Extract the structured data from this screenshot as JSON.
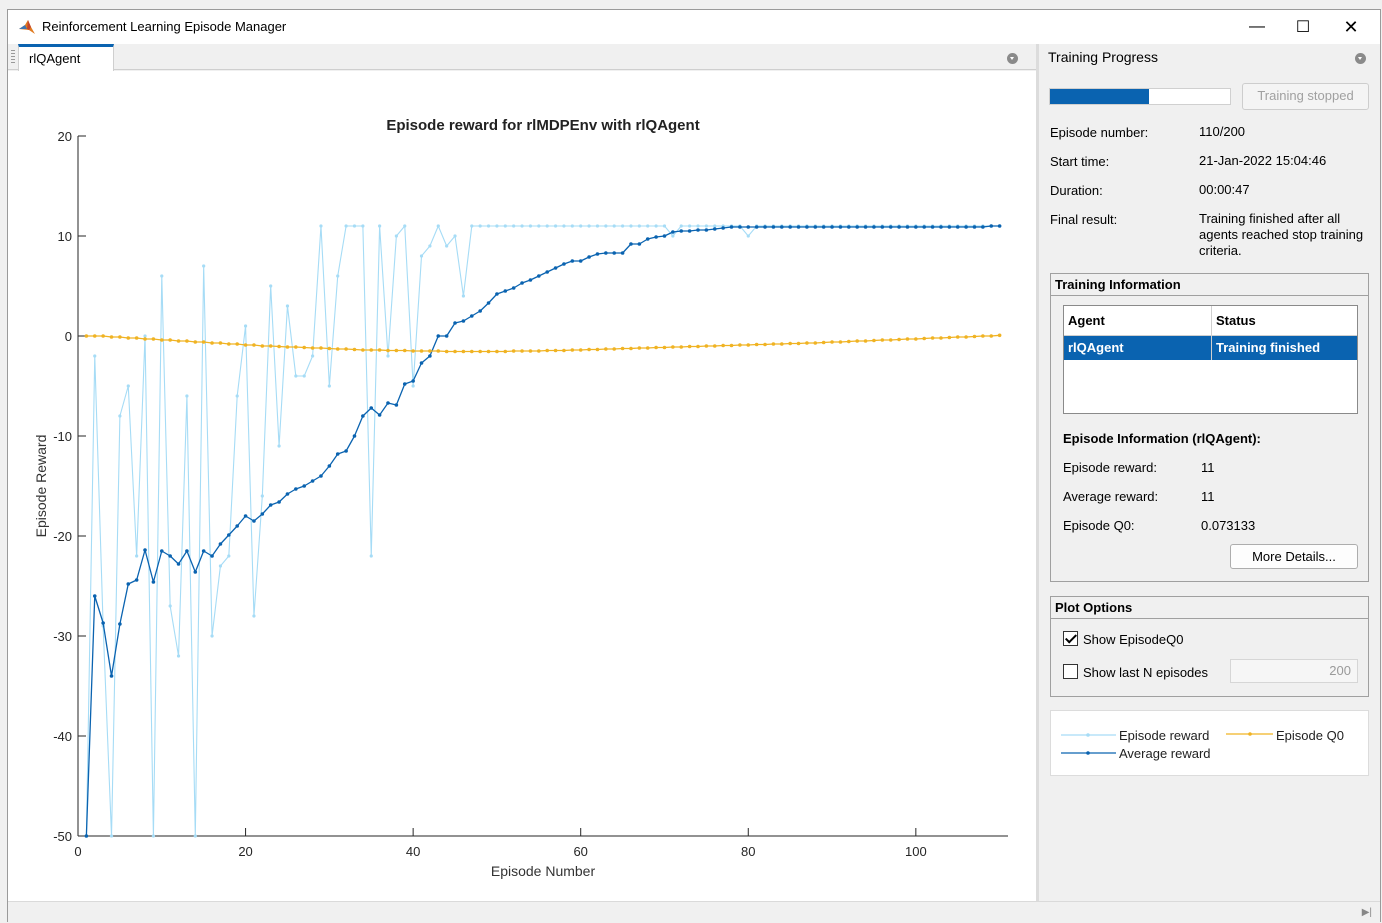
{
  "window": {
    "title": "Reinforcement Learning Episode Manager",
    "minimize": "—",
    "maximize": "☐",
    "close": "✕"
  },
  "doc_tab": {
    "label": "rlQAgent"
  },
  "right_panel": {
    "title": "Training Progress",
    "progress_fraction": 0.55,
    "stop_button": "Training stopped",
    "episode_number_label": "Episode number:",
    "episode_number": "110/200",
    "start_time_label": "Start time:",
    "start_time": "21-Jan-2022 15:04:46",
    "duration_label": "Duration:",
    "duration": "00:00:47",
    "final_result_label": "Final result:",
    "final_result": "Training finished after all agents reached stop training criteria.",
    "training_info": {
      "title": "Training Information",
      "col_agent": "Agent",
      "col_status": "Status",
      "row_agent": "rlQAgent",
      "row_status": "Training finished"
    },
    "episode_info": {
      "title": "Episode Information (rlQAgent):",
      "reward_label": "Episode reward:",
      "reward": "11",
      "avg_label": "Average reward:",
      "avg": "11",
      "q0_label": "Episode Q0:",
      "q0": "0.073133",
      "more_details": "More Details..."
    },
    "plot_options": {
      "title": "Plot Options",
      "show_q0_label": "Show EpisodeQ0",
      "show_q0_checked": true,
      "show_last_n_label": "Show last N episodes",
      "show_last_n_checked": false,
      "last_n_value": "200"
    },
    "legend": {
      "episode_reward": "Episode reward",
      "episode_q0": "Episode Q0",
      "average_reward": "Average reward"
    }
  },
  "colors": {
    "episode_reward": "#a6dcf6",
    "average_reward": "#0a63b0",
    "episode_q0": "#f0b323",
    "accent": "#0a63b0"
  },
  "chart_data": {
    "type": "line",
    "title": "Episode reward for rlMDPEnv with rlQAgent",
    "xlabel": "Episode Number",
    "ylabel": "Episode Reward",
    "xlim": [
      0,
      111
    ],
    "ylim": [
      -50,
      20
    ],
    "xticks": [
      0,
      20,
      40,
      60,
      80,
      100
    ],
    "yticks": [
      -50,
      -40,
      -30,
      -20,
      -10,
      0,
      10,
      20
    ],
    "x": [
      1,
      2,
      3,
      4,
      5,
      6,
      7,
      8,
      9,
      10,
      11,
      12,
      13,
      14,
      15,
      16,
      17,
      18,
      19,
      20,
      21,
      22,
      23,
      24,
      25,
      26,
      27,
      28,
      29,
      30,
      31,
      32,
      33,
      34,
      35,
      36,
      37,
      38,
      39,
      40,
      41,
      42,
      43,
      44,
      45,
      46,
      47,
      48,
      49,
      50,
      51,
      52,
      53,
      54,
      55,
      56,
      57,
      58,
      59,
      60,
      61,
      62,
      63,
      64,
      65,
      66,
      67,
      68,
      69,
      70,
      71,
      72,
      73,
      74,
      75,
      76,
      77,
      78,
      79,
      80,
      81,
      82,
      83,
      84,
      85,
      86,
      87,
      88,
      89,
      90,
      91,
      92,
      93,
      94,
      95,
      96,
      97,
      98,
      99,
      100,
      101,
      102,
      103,
      104,
      105,
      106,
      107,
      108,
      109,
      110
    ],
    "series": [
      {
        "name": "Episode reward",
        "values": [
          -50,
          -2,
          -29,
          -50,
          -8,
          -5,
          -22,
          0,
          -50,
          6,
          -27,
          -32,
          -6,
          -50,
          7,
          -30,
          -23,
          -22,
          -6,
          1,
          -28,
          -16,
          5,
          -11,
          3,
          -4,
          -4,
          -2,
          11,
          -5,
          6,
          11,
          11,
          11,
          -22,
          11,
          -2,
          10,
          11,
          -5,
          8,
          9,
          11,
          9,
          10,
          4,
          11,
          11,
          11,
          11,
          11,
          11,
          11,
          11,
          11,
          11,
          11,
          11,
          11,
          11,
          11,
          11,
          11,
          11,
          11,
          11,
          11,
          11,
          11,
          11,
          10,
          11,
          11,
          11,
          11,
          11,
          11,
          11,
          11,
          10,
          11,
          11,
          11,
          11,
          11,
          11,
          11,
          11,
          11,
          11,
          11,
          11,
          11,
          11,
          11,
          11,
          11,
          11,
          11,
          11,
          11,
          11,
          11,
          11,
          11,
          11,
          11,
          11,
          11,
          11
        ]
      },
      {
        "name": "Average reward",
        "values": [
          -50,
          -26,
          -28.7,
          -34,
          -28.8,
          -24.8,
          -24.4,
          -21.4,
          -24.6,
          -21.5,
          -22,
          -22.8,
          -21.5,
          -23.6,
          -21.5,
          -22,
          -20.8,
          -19.9,
          -19,
          -18,
          -18.5,
          -17.8,
          -16.9,
          -16.6,
          -15.8,
          -15.3,
          -15,
          -14.5,
          -14,
          -13,
          -11.8,
          -11.5,
          -10,
          -8,
          -7.2,
          -7.9,
          -6.7,
          -6.9,
          -4.8,
          -4.5,
          -2.7,
          -2,
          0,
          0,
          1.3,
          1.5,
          2,
          2.5,
          3.3,
          4.2,
          4.5,
          4.8,
          5.3,
          5.6,
          6,
          6.4,
          6.8,
          7.2,
          7.5,
          7.5,
          7.9,
          8.2,
          8.3,
          8.3,
          8.3,
          9.2,
          9.2,
          9.7,
          9.9,
          10,
          10.4,
          10.5,
          10.5,
          10.6,
          10.6,
          10.7,
          10.8,
          10.9,
          10.9,
          10.9,
          10.9,
          10.9,
          10.9,
          10.9,
          10.9,
          10.9,
          10.9,
          10.9,
          10.9,
          10.9,
          10.9,
          10.9,
          10.9,
          10.9,
          10.9,
          10.9,
          10.9,
          10.9,
          10.9,
          10.9,
          10.9,
          10.9,
          10.9,
          10.9,
          10.9,
          10.9,
          10.9,
          10.9,
          11,
          11
        ]
      },
      {
        "name": "Episode Q0",
        "values": [
          0,
          0,
          0,
          -0.1,
          -0.1,
          -0.2,
          -0.2,
          -0.3,
          -0.3,
          -0.4,
          -0.4,
          -0.5,
          -0.5,
          -0.6,
          -0.6,
          -0.7,
          -0.7,
          -0.8,
          -0.8,
          -0.9,
          -0.9,
          -1,
          -1,
          -1.05,
          -1.1,
          -1.1,
          -1.15,
          -1.2,
          -1.2,
          -1.25,
          -1.3,
          -1.3,
          -1.35,
          -1.4,
          -1.4,
          -1.4,
          -1.45,
          -1.45,
          -1.45,
          -1.5,
          -1.5,
          -1.5,
          -1.5,
          -1.55,
          -1.55,
          -1.55,
          -1.55,
          -1.55,
          -1.55,
          -1.55,
          -1.55,
          -1.5,
          -1.5,
          -1.5,
          -1.5,
          -1.45,
          -1.45,
          -1.45,
          -1.4,
          -1.4,
          -1.35,
          -1.35,
          -1.3,
          -1.3,
          -1.25,
          -1.25,
          -1.2,
          -1.2,
          -1.15,
          -1.15,
          -1.1,
          -1.1,
          -1.05,
          -1.05,
          -1,
          -1,
          -0.95,
          -0.95,
          -0.9,
          -0.9,
          -0.85,
          -0.85,
          -0.8,
          -0.8,
          -0.75,
          -0.75,
          -0.7,
          -0.7,
          -0.65,
          -0.6,
          -0.6,
          -0.55,
          -0.5,
          -0.5,
          -0.45,
          -0.4,
          -0.4,
          -0.35,
          -0.3,
          -0.3,
          -0.25,
          -0.2,
          -0.2,
          -0.15,
          -0.1,
          -0.1,
          -0.05,
          0,
          0,
          0.07
        ]
      }
    ]
  }
}
